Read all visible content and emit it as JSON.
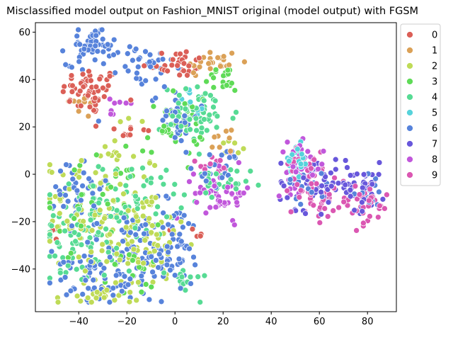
{
  "chart_data": {
    "type": "scatter",
    "title": "Misclassified model output on Fashion_MNIST original (model output) with FGSM",
    "xlabel": "",
    "ylabel": "",
    "xlim": [
      -58,
      92
    ],
    "ylim": [
      -58,
      64
    ],
    "x_ticks": [
      -40,
      -20,
      0,
      20,
      40,
      60,
      80
    ],
    "y_ticks": [
      -40,
      -20,
      0,
      20,
      40,
      60
    ],
    "grid": false,
    "legend": "outside-top-right",
    "legend_title": "",
    "series": [
      {
        "name": "0",
        "color": "#db5f57",
        "clusters": [
          {
            "cx": -35,
            "cy": 35,
            "sx": 6,
            "sy": 5,
            "n": 55
          },
          {
            "cx": 0,
            "cy": 47,
            "sx": 7,
            "sy": 3,
            "n": 30
          },
          {
            "cx": -20,
            "cy": 18,
            "sx": 5,
            "sy": 2,
            "n": 10
          },
          {
            "cx": 10,
            "cy": -25,
            "sx": 3,
            "sy": 3,
            "n": 5
          },
          {
            "cx": -50,
            "cy": -25,
            "sx": 2,
            "sy": 2,
            "n": 3
          }
        ]
      },
      {
        "name": "1",
        "color": "#dba157",
        "clusters": [
          {
            "cx": 15,
            "cy": 47,
            "sx": 6,
            "sy": 3,
            "n": 25
          },
          {
            "cx": -38,
            "cy": 30,
            "sx": 4,
            "sy": 4,
            "n": 10
          },
          {
            "cx": 20,
            "cy": 15,
            "sx": 4,
            "sy": 3,
            "n": 8
          }
        ]
      },
      {
        "name": "2",
        "color": "#bfdb57",
        "clusters": [
          {
            "cx": -30,
            "cy": -15,
            "sx": 12,
            "sy": 16,
            "n": 120
          },
          {
            "cx": -10,
            "cy": -30,
            "sx": 8,
            "sy": 10,
            "n": 50
          },
          {
            "cx": -28,
            "cy": -50,
            "sx": 6,
            "sy": 3,
            "n": 25
          },
          {
            "cx": 25,
            "cy": 12,
            "sx": 3,
            "sy": 2,
            "n": 6
          }
        ]
      },
      {
        "name": "3",
        "color": "#5fdb57",
        "clusters": [
          {
            "cx": 0,
            "cy": 20,
            "sx": 6,
            "sy": 6,
            "n": 40
          },
          {
            "cx": 20,
            "cy": 40,
            "sx": 4,
            "sy": 3,
            "n": 20
          },
          {
            "cx": -35,
            "cy": -10,
            "sx": 10,
            "sy": 10,
            "n": 40
          },
          {
            "cx": -15,
            "cy": -42,
            "sx": 6,
            "sy": 5,
            "n": 20
          }
        ]
      },
      {
        "name": "4",
        "color": "#57db94",
        "clusters": [
          {
            "cx": 10,
            "cy": 25,
            "sx": 8,
            "sy": 6,
            "n": 60
          },
          {
            "cx": -40,
            "cy": -25,
            "sx": 8,
            "sy": 10,
            "n": 80
          },
          {
            "cx": -15,
            "cy": -10,
            "sx": 8,
            "sy": 8,
            "n": 50
          },
          {
            "cx": 15,
            "cy": -5,
            "sx": 8,
            "sy": 4,
            "n": 30
          },
          {
            "cx": 5,
            "cy": -45,
            "sx": 4,
            "sy": 3,
            "n": 15
          }
        ]
      },
      {
        "name": "5",
        "color": "#57d3db",
        "clusters": [
          {
            "cx": 50,
            "cy": 5,
            "sx": 3,
            "sy": 4,
            "n": 25
          },
          {
            "cx": 8,
            "cy": 30,
            "sx": 4,
            "sy": 3,
            "n": 10
          }
        ]
      },
      {
        "name": "6",
        "color": "#5783db",
        "clusters": [
          {
            "cx": -35,
            "cy": 54,
            "sx": 5,
            "sy": 4,
            "n": 60
          },
          {
            "cx": -12,
            "cy": 45,
            "sx": 6,
            "sy": 5,
            "n": 35
          },
          {
            "cx": 0,
            "cy": 25,
            "sx": 5,
            "sy": 6,
            "n": 40
          },
          {
            "cx": -40,
            "cy": -5,
            "sx": 5,
            "sy": 8,
            "n": 40
          },
          {
            "cx": -20,
            "cy": -35,
            "sx": 10,
            "sy": 10,
            "n": 90
          },
          {
            "cx": 0,
            "cy": -30,
            "sx": 6,
            "sy": 10,
            "n": 60
          },
          {
            "cx": -35,
            "cy": -45,
            "sx": 8,
            "sy": 5,
            "n": 40
          },
          {
            "cx": 20,
            "cy": 3,
            "sx": 5,
            "sy": 4,
            "n": 20
          },
          {
            "cx": 55,
            "cy": -5,
            "sx": 5,
            "sy": 4,
            "n": 15
          },
          {
            "cx": 80,
            "cy": -5,
            "sx": 5,
            "sy": 5,
            "n": 15
          }
        ]
      },
      {
        "name": "7",
        "color": "#6857db",
        "clusters": [
          {
            "cx": 75,
            "cy": -5,
            "sx": 7,
            "sy": 5,
            "n": 55
          },
          {
            "cx": 55,
            "cy": -3,
            "sx": 6,
            "sy": 6,
            "n": 40
          }
        ]
      },
      {
        "name": "8",
        "color": "#c157db",
        "clusters": [
          {
            "cx": 20,
            "cy": -8,
            "sx": 6,
            "sy": 5,
            "n": 50
          },
          {
            "cx": 52,
            "cy": 3,
            "sx": 5,
            "sy": 5,
            "n": 40
          },
          {
            "cx": -25,
            "cy": 30,
            "sx": 3,
            "sy": 3,
            "n": 8
          }
        ]
      },
      {
        "name": "9",
        "color": "#db57b2",
        "clusters": [
          {
            "cx": 60,
            "cy": -10,
            "sx": 6,
            "sy": 5,
            "n": 45
          },
          {
            "cx": 78,
            "cy": -12,
            "sx": 6,
            "sy": 5,
            "n": 40
          },
          {
            "cx": 55,
            "cy": 5,
            "sx": 4,
            "sy": 4,
            "n": 20
          },
          {
            "cx": 15,
            "cy": 5,
            "sx": 5,
            "sy": 3,
            "n": 15
          }
        ]
      }
    ]
  }
}
